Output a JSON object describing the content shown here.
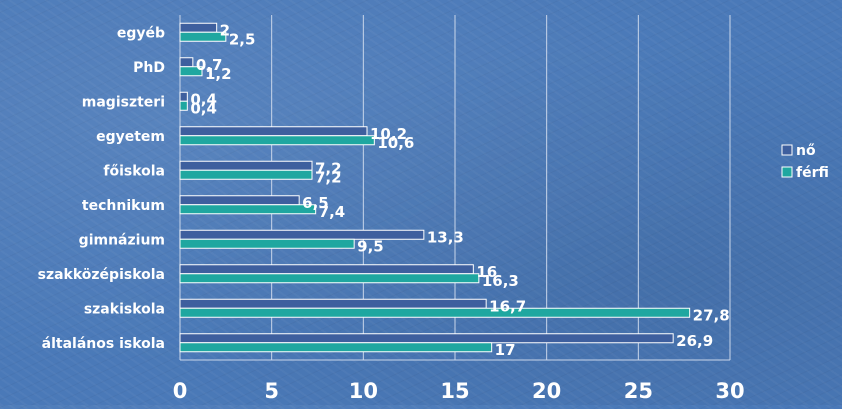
{
  "colors": {
    "series_no": "#3e5f9e",
    "series_ferfi": "#1fa7a0",
    "bar_stroke": "#ffffff",
    "grid": "#c9d6ea",
    "text": "#ffffff"
  },
  "chart_data": {
    "type": "bar",
    "orientation": "horizontal",
    "categories": [
      "általános iskola",
      "szakiskola",
      "szakközépiskola",
      "gimnázium",
      "technikum",
      "főiskola",
      "egyetem",
      "magiszteri",
      "PhD",
      "egyéb"
    ],
    "series": [
      {
        "name": "nő",
        "values": [
          26.9,
          16.7,
          16,
          13.3,
          6.5,
          7.2,
          10.2,
          0.4,
          0.7,
          2
        ],
        "labels": [
          "26,9",
          "16,7",
          "16",
          "13,3",
          "6,5",
          "7,2",
          "10,2",
          "0,4",
          "0,7",
          "2"
        ]
      },
      {
        "name": "férfi",
        "values": [
          17,
          27.8,
          16.3,
          9.5,
          7.4,
          7.2,
          10.6,
          0.4,
          1.2,
          2.5
        ],
        "labels": [
          "17",
          "27,8",
          "16,3",
          "9,5",
          "7,4",
          "7,2",
          "10,6",
          "0,4",
          "1,2",
          "2,5"
        ]
      }
    ],
    "x_ticks": [
      "0",
      "5",
      "10",
      "15",
      "20",
      "25",
      "30"
    ],
    "xlim": [
      0,
      30
    ],
    "grid": true,
    "legend": "right"
  }
}
